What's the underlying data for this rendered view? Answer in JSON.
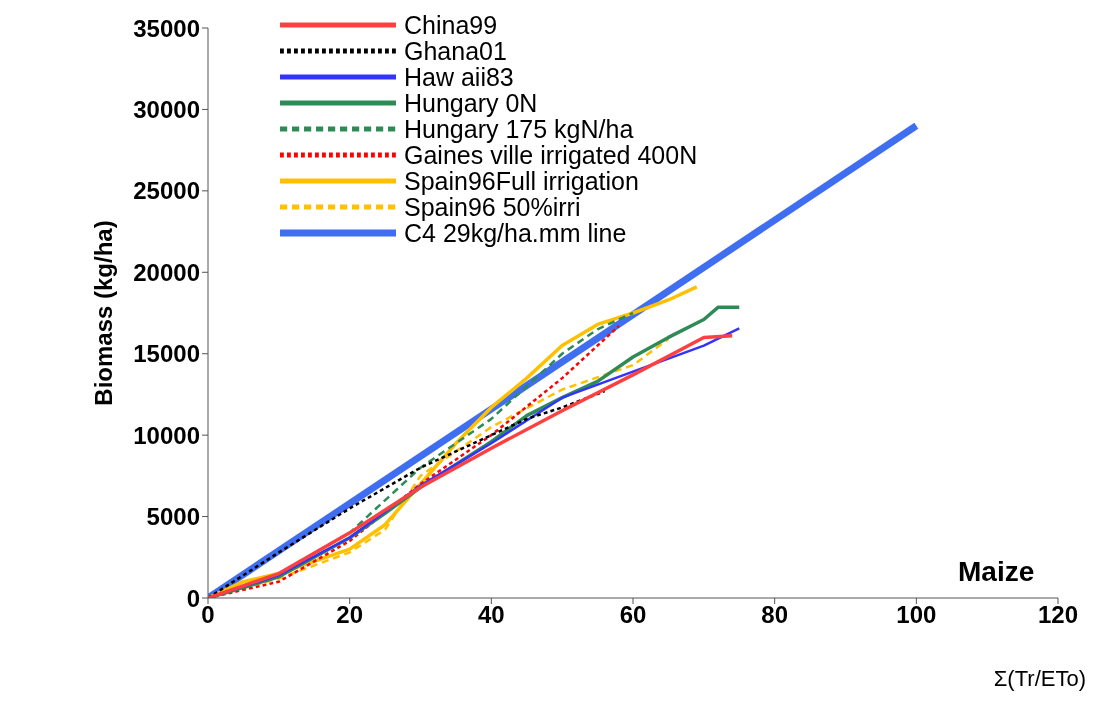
{
  "chart_data": {
    "type": "line",
    "xlabel": "Σ(Tr/ETo)",
    "ylabel": "Biomass (kg/ha)",
    "xlim": [
      0,
      120
    ],
    "ylim": [
      0,
      35000
    ],
    "xticks": [
      0,
      20,
      40,
      60,
      80,
      100,
      120
    ],
    "yticks": [
      0,
      5000,
      10000,
      15000,
      20000,
      25000,
      30000,
      35000
    ],
    "grid": false,
    "legend": "top left",
    "marker": "none",
    "annotations": [
      "Maize"
    ],
    "series": [
      {
        "name": "China99",
        "color": "#ff4040",
        "line_style": "solid",
        "x": [
          0,
          10,
          20,
          30,
          40,
          50,
          60,
          70,
          74
        ],
        "values": [
          0,
          1500,
          4000,
          6800,
          9200,
          11500,
          13700,
          16000,
          16100
        ]
      },
      {
        "name": "Ghana01",
        "color": "#000000",
        "line_style": "dotted",
        "x": [
          0,
          10,
          20,
          30,
          35,
          45,
          50,
          56
        ],
        "values": [
          0,
          2800,
          5500,
          8000,
          9000,
          11000,
          11700,
          12700
        ]
      },
      {
        "name": "Haw aii83",
        "color": "#3333ff",
        "line_style": "solid",
        "x": [
          0,
          10,
          20,
          30,
          40,
          50,
          60,
          70,
          75
        ],
        "values": [
          0,
          1400,
          3700,
          6900,
          9500,
          12300,
          13900,
          15500,
          16550
        ]
      },
      {
        "name": "Hungary 0N",
        "color": "#2e8b57",
        "line_style": "solid",
        "x": [
          0,
          10,
          20,
          25,
          30,
          40,
          45,
          50,
          55,
          60,
          65,
          70,
          72,
          75
        ],
        "values": [
          0,
          1300,
          3700,
          5200,
          6800,
          9600,
          11200,
          12300,
          13300,
          14800,
          16000,
          17100,
          17850,
          17850
        ]
      },
      {
        "name": "Hungary 175 kgN/ha",
        "color": "#2e8b57",
        "line_style": "dashed",
        "x": [
          0,
          10,
          20,
          30,
          40,
          50,
          55,
          60
        ],
        "values": [
          0,
          1500,
          4000,
          8000,
          11000,
          15000,
          16500,
          17500
        ]
      },
      {
        "name": "Gaines ville irrigated 400N",
        "color": "#ff0000",
        "line_style": "dotted",
        "x": [
          0,
          10,
          20,
          30,
          40,
          50,
          58
        ],
        "values": [
          0,
          1000,
          3500,
          7000,
          10000,
          13500,
          16700
        ]
      },
      {
        "name": "Spain96Full irrigation",
        "color": "#ffc000",
        "line_style": "solid",
        "x": [
          0,
          5,
          10,
          20,
          25,
          30,
          35,
          40,
          45,
          50,
          55,
          60,
          65,
          69
        ],
        "values": [
          0,
          1000,
          1500,
          3000,
          4500,
          7000,
          9500,
          11700,
          13500,
          15500,
          16800,
          17500,
          18300,
          19100
        ]
      },
      {
        "name": "Spain96 50%irri",
        "color": "#ffc000",
        "line_style": "dashed",
        "x": [
          0,
          10,
          20,
          25,
          30,
          40,
          50,
          60,
          65
        ],
        "values": [
          0,
          1200,
          2800,
          4200,
          7500,
          10500,
          12800,
          14300,
          15900
        ]
      },
      {
        "name": "C4 29kg/ha.mm line",
        "color": "#3f6ff0",
        "line_style": "solid",
        "x": [
          0,
          100
        ],
        "values": [
          0,
          29000
        ]
      }
    ]
  }
}
